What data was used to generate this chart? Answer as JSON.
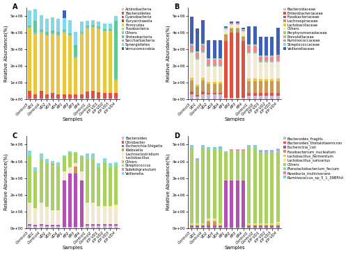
{
  "samples": [
    "Control3",
    "VD1",
    "Control4",
    "VD2",
    "VD3",
    "VD4",
    "KP1",
    "KP2",
    "KP3",
    "KP4",
    "Control1",
    "Control2",
    "KP VD1",
    "KP VD2",
    "KP VD3",
    "KP VD4"
  ],
  "n_samples": 16,
  "panel_A_ylabel": "Relative Abundance(%)",
  "panel_A_xlabel": "Samples",
  "panel_A_ylim": [
    0,
    5500000
  ],
  "panel_A_yticks": [
    0,
    1000000,
    2000000,
    3000000,
    4000000,
    5000000
  ],
  "panel_A_ytick_labels": [
    "0e+00",
    "1e+06",
    "2e+06",
    "3e+06",
    "4e+06",
    "5e+06"
  ],
  "panel_A_legend": [
    "Actinobacteria",
    "Bacteroidetes",
    "Cyanobacteria",
    "Euryarchaeota",
    "Firmicutes",
    "Fusobacteria",
    "Others",
    "Proteobacteria",
    "Saccharbacteria",
    "Synergistetes",
    "Verrucomicrobia"
  ],
  "panel_A_colors": [
    "#c8b8d8",
    "#e05040",
    "#b050b0",
    "#9b5020",
    "#e8c840",
    "#a8d060",
    "#90c8b0",
    "#60c898",
    "#f08888",
    "#80d8e8",
    "#4060b8"
  ],
  "panel_A_data": [
    [
      30000,
      30000,
      30000,
      30000,
      30000,
      30000,
      30000,
      30000,
      30000,
      30000,
      30000,
      30000,
      30000,
      30000,
      30000,
      30000
    ],
    [
      450000,
      280000,
      480000,
      280000,
      260000,
      270000,
      280000,
      260000,
      250000,
      280000,
      420000,
      460000,
      380000,
      340000,
      340000,
      330000
    ],
    [
      0,
      0,
      0,
      0,
      100000,
      0,
      0,
      0,
      0,
      0,
      0,
      0,
      0,
      0,
      0,
      0
    ],
    [
      0,
      0,
      0,
      0,
      0,
      0,
      0,
      0,
      0,
      0,
      0,
      0,
      0,
      0,
      0,
      0
    ],
    [
      3800000,
      3600000,
      3500000,
      3500000,
      3500000,
      3500000,
      3700000,
      3500000,
      2200000,
      3600000,
      3800000,
      3800000,
      3800000,
      3700000,
      3700000,
      780000
    ],
    [
      0,
      0,
      0,
      0,
      0,
      0,
      0,
      0,
      0,
      0,
      0,
      0,
      0,
      0,
      0,
      0
    ],
    [
      60000,
      60000,
      60000,
      60000,
      60000,
      60000,
      60000,
      60000,
      60000,
      60000,
      60000,
      60000,
      60000,
      60000,
      60000,
      60000
    ],
    [
      80000,
      730000,
      80000,
      160000,
      160000,
      160000,
      80000,
      80000,
      700000,
      80000,
      80000,
      80000,
      80000,
      80000,
      80000,
      3500000
    ],
    [
      0,
      0,
      0,
      0,
      0,
      0,
      0,
      0,
      0,
      0,
      0,
      0,
      0,
      0,
      0,
      0
    ],
    [
      900000,
      700000,
      900000,
      800000,
      800000,
      800000,
      700000,
      800000,
      800000,
      600000,
      300000,
      300000,
      300000,
      300000,
      300000,
      300000
    ],
    [
      0,
      0,
      0,
      0,
      0,
      0,
      480000,
      0,
      0,
      0,
      0,
      0,
      0,
      0,
      0,
      0
    ]
  ],
  "panel_B_ylabel": "Relative Abundance(%)",
  "panel_B_xlabel": "Samples",
  "panel_B_ylim": [
    0,
    5500000
  ],
  "panel_B_yticks": [
    0,
    1000000,
    2000000,
    3000000,
    4000000,
    5000000
  ],
  "panel_B_ytick_labels": [
    "0e+00",
    "1e+06",
    "2e+06",
    "3e+06",
    "4e+06",
    "5e+06"
  ],
  "panel_B_legend": [
    "Bacteroidaceae",
    "Enterobacteriaceae",
    "Fusobacteriaceae",
    "Lachnospiraceae",
    "Lactobacillaceae",
    "Others",
    "Porphyromonadaceae",
    "Prevotellaceae",
    "Ruminococcaceae",
    "Streptococcaceae",
    "Veillonellaceae"
  ],
  "panel_B_colors": [
    "#c8b8d8",
    "#e05040",
    "#b050b0",
    "#c89858",
    "#e8c840",
    "#f0e8d0",
    "#a8d060",
    "#90c8b0",
    "#f08888",
    "#80d8e8",
    "#4060b8"
  ],
  "panel_B_data": [
    [
      280000,
      180000,
      280000,
      280000,
      280000,
      280000,
      80000,
      80000,
      80000,
      80000,
      220000,
      220000,
      220000,
      220000,
      220000,
      220000
    ],
    [
      160000,
      80000,
      160000,
      80000,
      80000,
      80000,
      3400000,
      3900000,
      3900000,
      3400000,
      160000,
      160000,
      160000,
      160000,
      160000,
      160000
    ],
    [
      0,
      0,
      0,
      0,
      0,
      0,
      0,
      0,
      0,
      0,
      0,
      0,
      0,
      0,
      0,
      0
    ],
    [
      680000,
      480000,
      680000,
      560000,
      560000,
      560000,
      380000,
      280000,
      280000,
      280000,
      680000,
      680000,
      680000,
      680000,
      680000,
      680000
    ],
    [
      180000,
      130000,
      180000,
      130000,
      130000,
      130000,
      40000,
      40000,
      40000,
      40000,
      180000,
      180000,
      130000,
      130000,
      130000,
      180000
    ],
    [
      1500000,
      1500000,
      1500000,
      900000,
      900000,
      900000,
      280000,
      180000,
      180000,
      280000,
      1500000,
      1500000,
      1000000,
      1000000,
      1000000,
      1000000
    ],
    [
      0,
      0,
      0,
      0,
      0,
      0,
      0,
      0,
      0,
      0,
      0,
      0,
      0,
      0,
      0,
      0
    ],
    [
      80000,
      80000,
      80000,
      80000,
      80000,
      80000,
      0,
      0,
      0,
      0,
      80000,
      80000,
      80000,
      80000,
      80000,
      80000
    ],
    [
      380000,
      330000,
      380000,
      330000,
      330000,
      330000,
      80000,
      80000,
      80000,
      80000,
      380000,
      380000,
      280000,
      280000,
      280000,
      280000
    ],
    [
      80000,
      80000,
      80000,
      80000,
      80000,
      80000,
      30000,
      30000,
      30000,
      30000,
      80000,
      80000,
      80000,
      80000,
      80000,
      80000
    ],
    [
      1600000,
      1400000,
      1400000,
      1100000,
      1100000,
      1100000,
      80000,
      80000,
      80000,
      80000,
      1100000,
      1100000,
      1100000,
      1100000,
      1100000,
      1600000
    ]
  ],
  "panel_C_ylabel": "Relative Abundance(%)",
  "panel_C_xlabel": "Samples",
  "panel_C_ylim": [
    0,
    5500000
  ],
  "panel_C_yticks": [
    0,
    1000000,
    2000000,
    3000000,
    4000000,
    5000000
  ],
  "panel_C_ytick_labels": [
    "0e+00",
    "1e+06",
    "2e+06",
    "3e+06",
    "4e+06",
    "5e+06"
  ],
  "panel_C_legend": [
    "Bacteroides",
    "Citrobacter",
    "Escherichia-Shigella",
    "Klebsiella",
    "Lachnoclostridium",
    "Lactobacillus",
    "Others",
    "Streptococcus",
    "Subdoligranulum",
    "Veillonella"
  ],
  "panel_C_colors": [
    "#c8b8d8",
    "#e05040",
    "#b050b0",
    "#c89858",
    "#f0e8d0",
    "#f8f0a0",
    "#a8d060",
    "#88e880",
    "#f08888",
    "#80d8e8"
  ],
  "panel_C_data": [
    [
      160000,
      120000,
      160000,
      120000,
      120000,
      120000,
      60000,
      60000,
      60000,
      60000,
      160000,
      160000,
      160000,
      160000,
      160000,
      160000
    ],
    [
      0,
      0,
      0,
      0,
      0,
      0,
      0,
      0,
      0,
      0,
      0,
      0,
      0,
      0,
      0,
      0
    ],
    [
      80000,
      80000,
      80000,
      80000,
      80000,
      80000,
      2800000,
      3200000,
      3200000,
      2800000,
      80000,
      80000,
      80000,
      80000,
      80000,
      80000
    ],
    [
      0,
      0,
      0,
      0,
      0,
      0,
      0,
      0,
      450000,
      0,
      0,
      0,
      0,
      0,
      0,
      0
    ],
    [
      1200000,
      900000,
      1200000,
      1000000,
      800000,
      800000,
      500000,
      350000,
      150000,
      500000,
      1200000,
      1200000,
      1000000,
      1000000,
      1000000,
      1000000
    ],
    [
      80000,
      80000,
      80000,
      80000,
      80000,
      80000,
      30000,
      30000,
      30000,
      30000,
      80000,
      80000,
      80000,
      80000,
      80000,
      150000
    ],
    [
      2800000,
      2200000,
      2600000,
      2600000,
      2600000,
      2600000,
      900000,
      900000,
      600000,
      900000,
      2600000,
      2600000,
      2300000,
      2600000,
      2300000,
      2300000
    ],
    [
      80000,
      80000,
      80000,
      80000,
      80000,
      80000,
      30000,
      30000,
      30000,
      30000,
      80000,
      80000,
      80000,
      80000,
      80000,
      80000
    ],
    [
      0,
      0,
      0,
      0,
      80000,
      0,
      0,
      0,
      0,
      0,
      0,
      0,
      0,
      0,
      0,
      0
    ],
    [
      260000,
      180000,
      260000,
      180000,
      180000,
      180000,
      30000,
      30000,
      30000,
      30000,
      260000,
      260000,
      180000,
      180000,
      180000,
      180000
    ]
  ],
  "panel_D_ylabel": "Relative Abundance(%)",
  "panel_D_xlabel": "Samples",
  "panel_D_ylim": [
    0,
    5500000
  ],
  "panel_D_yticks": [
    0,
    1000000,
    2000000,
    3000000,
    4000000,
    5000000
  ],
  "panel_D_ytick_labels": [
    "0e+00",
    "1e+06",
    "2e+06",
    "3e+06",
    "4e+06",
    "5e+06"
  ],
  "panel_D_legend": [
    "Bacteroides_fragilis",
    "Bacteroides_thetaiotaomicron",
    "Escherichia_coli",
    "Fusobacterium_nucleatum",
    "Lactobacillus_fermentum",
    "Lactobacillus_salivarius",
    "Others",
    "Planolactobacterium_fecium",
    "Roseburia_inulinivorans",
    "Ruminococcus_sp_5_1_39BFAA"
  ],
  "panel_D_colors": [
    "#c8b8d8",
    "#e05040",
    "#b050b0",
    "#c89858",
    "#e8d048",
    "#f0e8a0",
    "#a8d060",
    "#80d8c8",
    "#f080a0",
    "#80c8e8"
  ],
  "panel_D_data": [
    [
      30000,
      30000,
      30000,
      30000,
      30000,
      30000,
      30000,
      30000,
      30000,
      30000,
      30000,
      30000,
      30000,
      30000,
      30000,
      30000
    ],
    [
      30000,
      30000,
      30000,
      30000,
      30000,
      30000,
      30000,
      30000,
      30000,
      30000,
      30000,
      30000,
      30000,
      30000,
      30000,
      30000
    ],
    [
      80000,
      80000,
      80000,
      80000,
      80000,
      80000,
      2800000,
      2800000,
      2800000,
      2800000,
      80000,
      80000,
      80000,
      80000,
      80000,
      80000
    ],
    [
      0,
      0,
      0,
      280000,
      280000,
      0,
      0,
      0,
      0,
      0,
      0,
      0,
      0,
      0,
      0,
      0
    ],
    [
      80000,
      80000,
      80000,
      80000,
      80000,
      80000,
      30000,
      30000,
      30000,
      30000,
      80000,
      80000,
      80000,
      80000,
      80000,
      160000
    ],
    [
      80000,
      80000,
      80000,
      80000,
      80000,
      80000,
      30000,
      30000,
      30000,
      30000,
      80000,
      80000,
      80000,
      80000,
      80000,
      80000
    ],
    [
      4500000,
      3700000,
      4500000,
      4100000,
      4100000,
      4400000,
      1600000,
      1700000,
      1700000,
      1700000,
      4500000,
      4500000,
      4200000,
      4200000,
      4200000,
      4200000
    ],
    [
      80000,
      80000,
      80000,
      80000,
      80000,
      80000,
      30000,
      30000,
      30000,
      30000,
      80000,
      80000,
      80000,
      80000,
      80000,
      80000
    ],
    [
      30000,
      30000,
      30000,
      30000,
      30000,
      30000,
      30000,
      30000,
      30000,
      30000,
      30000,
      30000,
      30000,
      30000,
      30000,
      30000
    ],
    [
      80000,
      80000,
      80000,
      80000,
      80000,
      80000,
      30000,
      30000,
      30000,
      30000,
      80000,
      80000,
      80000,
      80000,
      80000,
      80000
    ]
  ],
  "bar_width": 0.6,
  "figure_bg": "#ffffff",
  "font_size_label": 5,
  "font_size_tick": 4,
  "font_size_legend": 3.8,
  "font_size_panel_label": 7
}
